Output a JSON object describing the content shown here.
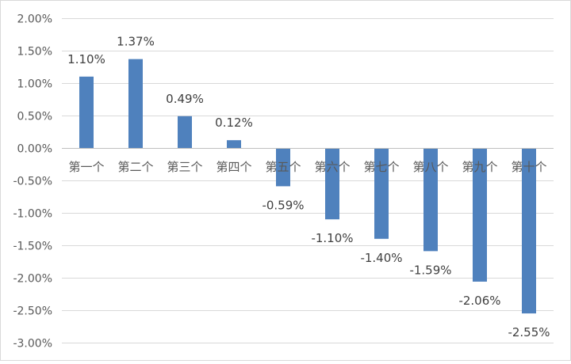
{
  "chart_data": {
    "type": "bar",
    "categories": [
      "第一个",
      "第二个",
      "第三个",
      "第四个",
      "第五个",
      "第六个",
      "第七个",
      "第八个",
      "第九个",
      "第十个"
    ],
    "values": [
      1.1,
      1.37,
      0.49,
      0.12,
      -0.59,
      -1.1,
      -1.4,
      -1.59,
      -2.06,
      -2.55
    ],
    "data_labels": [
      "1.10%",
      "1.37%",
      "0.49%",
      "0.12%",
      "-0.59%",
      "-1.10%",
      "-1.40%",
      "-1.59%",
      "-2.06%",
      "-2.55%"
    ],
    "y_tick_labels": [
      "2.00%",
      "1.50%",
      "1.00%",
      "0.50%",
      "0.00%",
      "-0.50%",
      "-1.00%",
      "-1.50%",
      "-2.00%",
      "-2.50%",
      "-3.00%"
    ],
    "ylim": [
      -3,
      2
    ],
    "y_step": 0.5,
    "grid": true,
    "legend": "none",
    "bar_color": "#4F81BD",
    "grid_color": "#D9D9D9"
  }
}
